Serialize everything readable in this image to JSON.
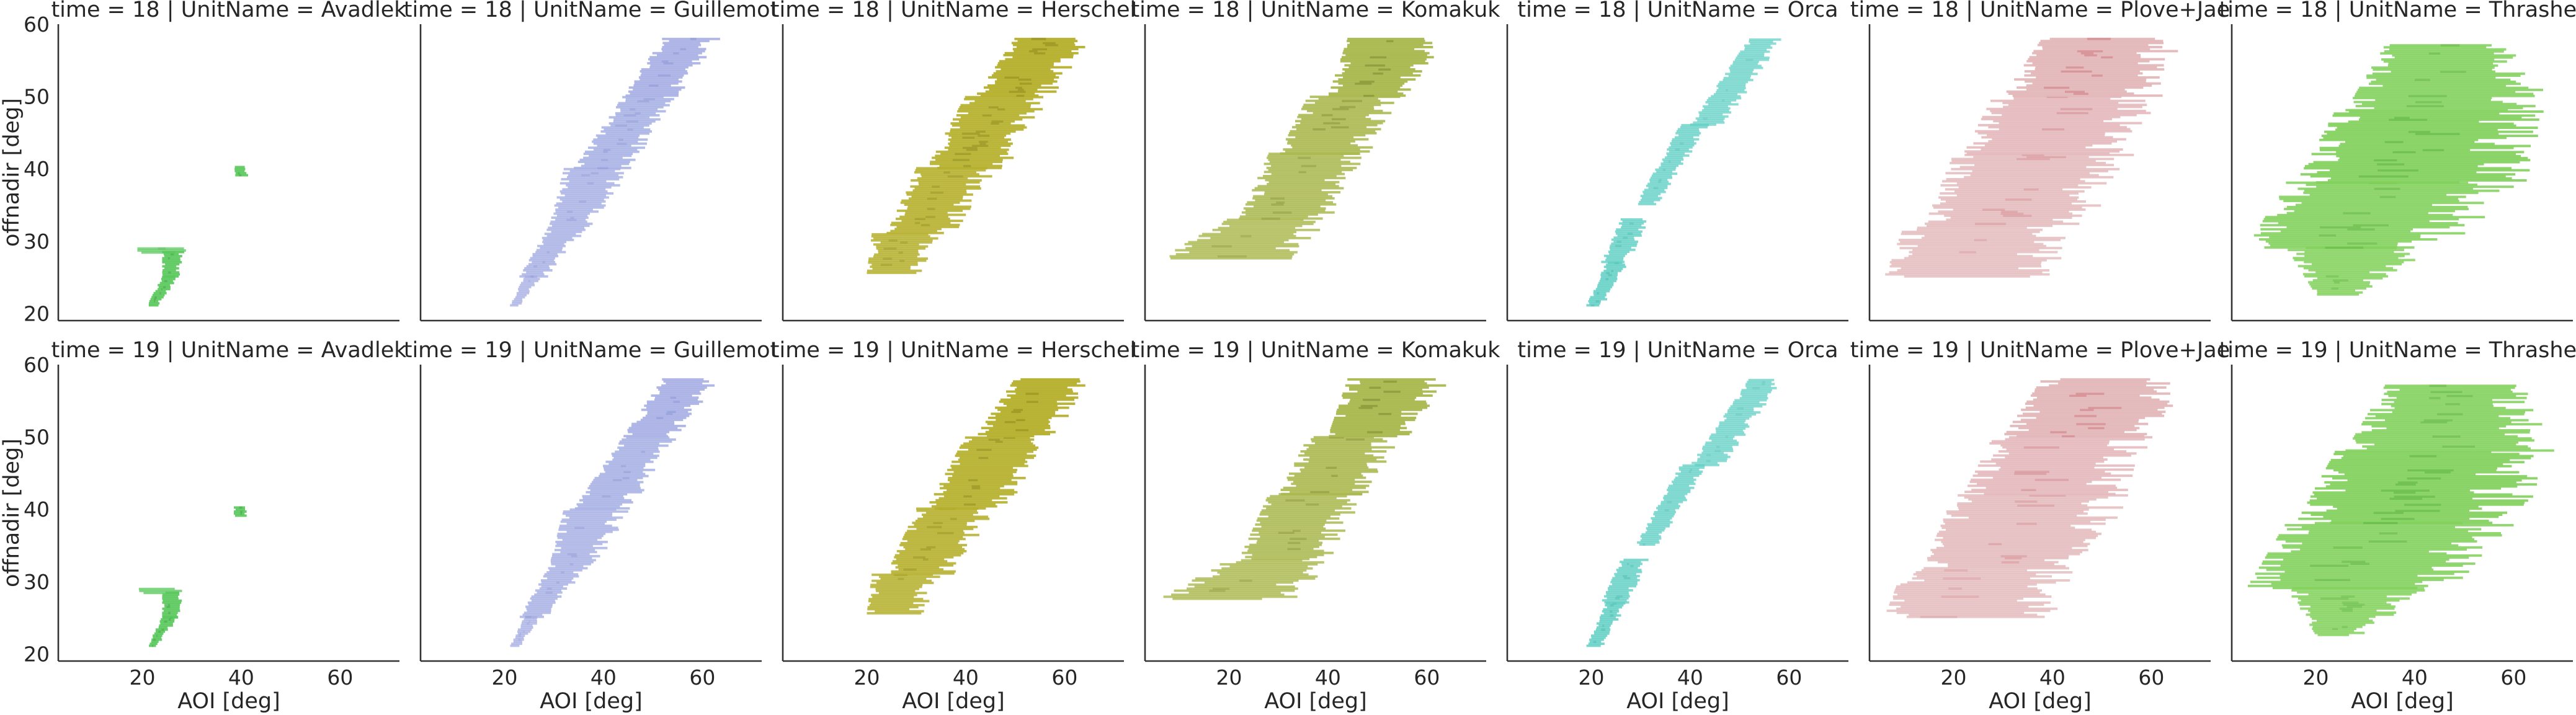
{
  "figure": {
    "xlabel": "AOI [deg]",
    "ylabel": "offnadir [deg]",
    "row_var": "time",
    "col_var": "UnitName"
  },
  "chart_data": {
    "type": "heatmap",
    "description_kind": "faceted 2D histogram of offnadir vs AOI, rows = time, columns = UnitName",
    "xlim": [
      3,
      72
    ],
    "ylim": [
      19,
      60
    ],
    "x_ticks": [
      20,
      40,
      60
    ],
    "y_ticks": [
      20,
      30,
      40,
      50,
      60
    ],
    "grid": false,
    "rows": [
      {
        "label": "time = 18",
        "time": 18
      },
      {
        "label": "time = 19",
        "time": 19
      }
    ],
    "units": [
      {
        "name": "Avadlek",
        "color": "#5ac85c",
        "dark": "#2f8f34",
        "patches": [
          {
            "y0": 21,
            "y1": 25,
            "xa0": 21,
            "xb0": 23,
            "xa1": 24,
            "xb1": 27,
            "density": 0.9
          },
          {
            "y0": 25,
            "y1": 28.5,
            "xa0": 24,
            "xb0": 27,
            "xa1": 24,
            "xb1": 28,
            "density": 0.9
          },
          {
            "y0": 28.3,
            "y1": 28.9,
            "xa0": 19,
            "xb0": 28,
            "xa1": 19,
            "xb1": 28,
            "density": 0.5
          },
          {
            "y0": 39,
            "y1": 40.3,
            "xa0": 38.5,
            "xb0": 41,
            "xa1": 38.5,
            "xb1": 41,
            "density": 0.9
          }
        ]
      },
      {
        "name": "Guillemot",
        "color": "#a5aee3",
        "dark": "#6d7cc9",
        "patches": [
          {
            "y0": 21,
            "y1": 25,
            "xa0": 21,
            "xb0": 23,
            "xa1": 24,
            "xb1": 27,
            "density": 0.5
          },
          {
            "y0": 25,
            "y1": 32,
            "xa0": 23,
            "xb0": 28,
            "xa1": 29,
            "xb1": 36,
            "density": 0.6
          },
          {
            "y0": 32,
            "y1": 40,
            "xa0": 29,
            "xb0": 37,
            "xa1": 32,
            "xb1": 44,
            "density": 0.6
          },
          {
            "y0": 40,
            "y1": 50,
            "xa0": 34,
            "xb0": 44,
            "xa1": 44,
            "xb1": 54,
            "density": 0.7
          },
          {
            "y0": 50,
            "y1": 58,
            "xa0": 44,
            "xb0": 54,
            "xa1": 52,
            "xb1": 62,
            "density": 0.8
          }
        ]
      },
      {
        "name": "Herschel",
        "color": "#b5b02c",
        "dark": "#777312",
        "patches": [
          {
            "y0": 25.5,
            "y1": 31,
            "xa0": 20,
            "xb0": 30,
            "xa1": 21,
            "xb1": 33,
            "density": 0.7
          },
          {
            "y0": 31,
            "y1": 40,
            "xa0": 24,
            "xb0": 36,
            "xa1": 30,
            "xb1": 44,
            "density": 0.8
          },
          {
            "y0": 40,
            "y1": 50,
            "xa0": 32,
            "xb0": 46,
            "xa1": 40,
            "xb1": 55,
            "density": 0.9
          },
          {
            "y0": 50,
            "y1": 58,
            "xa0": 42,
            "xb0": 56,
            "xa1": 50,
            "xb1": 63,
            "density": 1.0
          }
        ]
      },
      {
        "name": "Komakuk",
        "color": "#aab84e",
        "dark": "#5d6d19",
        "patches": [
          {
            "y0": 27.5,
            "y1": 33,
            "xa0": 6,
            "xb0": 30,
            "xa1": 20,
            "xb1": 38,
            "density": 0.6
          },
          {
            "y0": 33,
            "y1": 42,
            "xa0": 22,
            "xb0": 38,
            "xa1": 28,
            "xb1": 45,
            "density": 0.7
          },
          {
            "y0": 42,
            "y1": 50,
            "xa0": 30,
            "xb0": 46,
            "xa1": 36,
            "xb1": 52,
            "density": 0.8
          },
          {
            "y0": 50,
            "y1": 58,
            "xa0": 40,
            "xb0": 54,
            "xa1": 44,
            "xb1": 62,
            "density": 1.0
          }
        ]
      },
      {
        "name": "Orca",
        "color": "#5fcfc4",
        "dark": "#259b90",
        "patches": [
          {
            "y0": 21,
            "y1": 27,
            "xa0": 19,
            "xb0": 22,
            "xa1": 23,
            "xb1": 27,
            "density": 0.7
          },
          {
            "y0": 27,
            "y1": 33,
            "xa0": 22,
            "xb0": 27,
            "xa1": 26,
            "xb1": 31,
            "density": 0.6
          },
          {
            "y0": 35,
            "y1": 46,
            "xa0": 29,
            "xb0": 33,
            "xa1": 38,
            "xb1": 43,
            "density": 0.5
          },
          {
            "y0": 46,
            "y1": 58,
            "xa0": 40,
            "xb0": 46,
            "xa1": 52,
            "xb1": 58,
            "density": 0.4
          }
        ]
      },
      {
        "name": "Plove+Jae",
        "color": "#e2b5b8",
        "dark": "#c24b55",
        "patches": [
          {
            "y0": 25,
            "y1": 32,
            "xa0": 6,
            "xb0": 36,
            "xa1": 10,
            "xb1": 40,
            "density": 0.5
          },
          {
            "y0": 32,
            "y1": 42,
            "xa0": 14,
            "xb0": 42,
            "xa1": 20,
            "xb1": 52,
            "density": 0.6
          },
          {
            "y0": 42,
            "y1": 50,
            "xa0": 22,
            "xb0": 50,
            "xa1": 28,
            "xb1": 57,
            "density": 0.7
          },
          {
            "y0": 50,
            "y1": 58,
            "xa0": 30,
            "xb0": 58,
            "xa1": 38,
            "xb1": 62,
            "density": 0.9
          }
        ]
      },
      {
        "name": "Thrasher",
        "color": "#82d15c",
        "dark": "#3f9a29",
        "patches": [
          {
            "y0": 22.5,
            "y1": 29,
            "xa0": 20,
            "xb0": 28,
            "xa1": 14,
            "xb1": 40,
            "density": 0.7
          },
          {
            "y0": 29,
            "y1": 38,
            "xa0": 6,
            "xb0": 42,
            "xa1": 14,
            "xb1": 54,
            "density": 0.8
          },
          {
            "y0": 38,
            "y1": 48,
            "xa0": 16,
            "xb0": 56,
            "xa1": 24,
            "xb1": 60,
            "density": 0.9
          },
          {
            "y0": 48,
            "y1": 57,
            "xa0": 26,
            "xb0": 62,
            "xa1": 34,
            "xb1": 58,
            "density": 0.8
          }
        ]
      }
    ]
  }
}
